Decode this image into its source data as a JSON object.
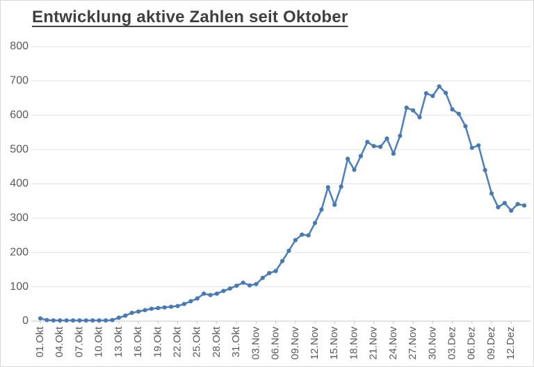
{
  "chart": {
    "title": "Entwicklung aktive Zahlen seit Oktober"
  },
  "chart_data": {
    "type": "line",
    "title": "Entwicklung aktive Zahlen seit Oktober",
    "xlabel": "",
    "ylabel": "",
    "ylim": [
      0,
      800
    ],
    "y_tick_step": 100,
    "y_tick_labels": [
      "0",
      "100",
      "200",
      "300",
      "400",
      "500",
      "600",
      "700",
      "800"
    ],
    "x_tick_every": 3,
    "x_tick_labels": [
      "01.Okt",
      "04.Okt",
      "07.Okt",
      "10.Okt",
      "13.Okt",
      "16.Okt",
      "19.Okt",
      "22.Okt",
      "25.Okt",
      "28.Okt",
      "31.Okt",
      "03.Nov",
      "06.Nov",
      "09.Nov",
      "12.Nov",
      "15.Nov",
      "18.Nov",
      "21.Nov",
      "24.Nov",
      "27.Nov",
      "30.Nov",
      "03.Dez",
      "06.Dez",
      "09.Dez",
      "12.Dez"
    ],
    "grid": true,
    "legend": "none",
    "marker": "circle",
    "values": [
      8,
      3,
      2,
      2,
      2,
      2,
      2,
      2,
      2,
      2,
      2,
      3,
      10,
      16,
      24,
      28,
      32,
      36,
      38,
      40,
      42,
      44,
      50,
      58,
      66,
      80,
      76,
      80,
      88,
      95,
      103,
      112,
      104,
      108,
      126,
      140,
      146,
      175,
      205,
      236,
      252,
      250,
      286,
      325,
      390,
      339,
      392,
      473,
      441,
      481,
      522,
      510,
      508,
      532,
      488,
      540,
      622,
      614,
      594,
      664,
      656,
      684,
      665,
      617,
      604,
      568,
      505,
      512,
      440,
      372,
      332,
      344,
      322,
      341,
      337
    ],
    "colors": {
      "series": "#4e81bd",
      "marker": "#4879b3",
      "gridline": "#e2e2e2",
      "axis_line": "#c6c6c6",
      "tick_label": "#595959",
      "title": "#404040"
    }
  }
}
